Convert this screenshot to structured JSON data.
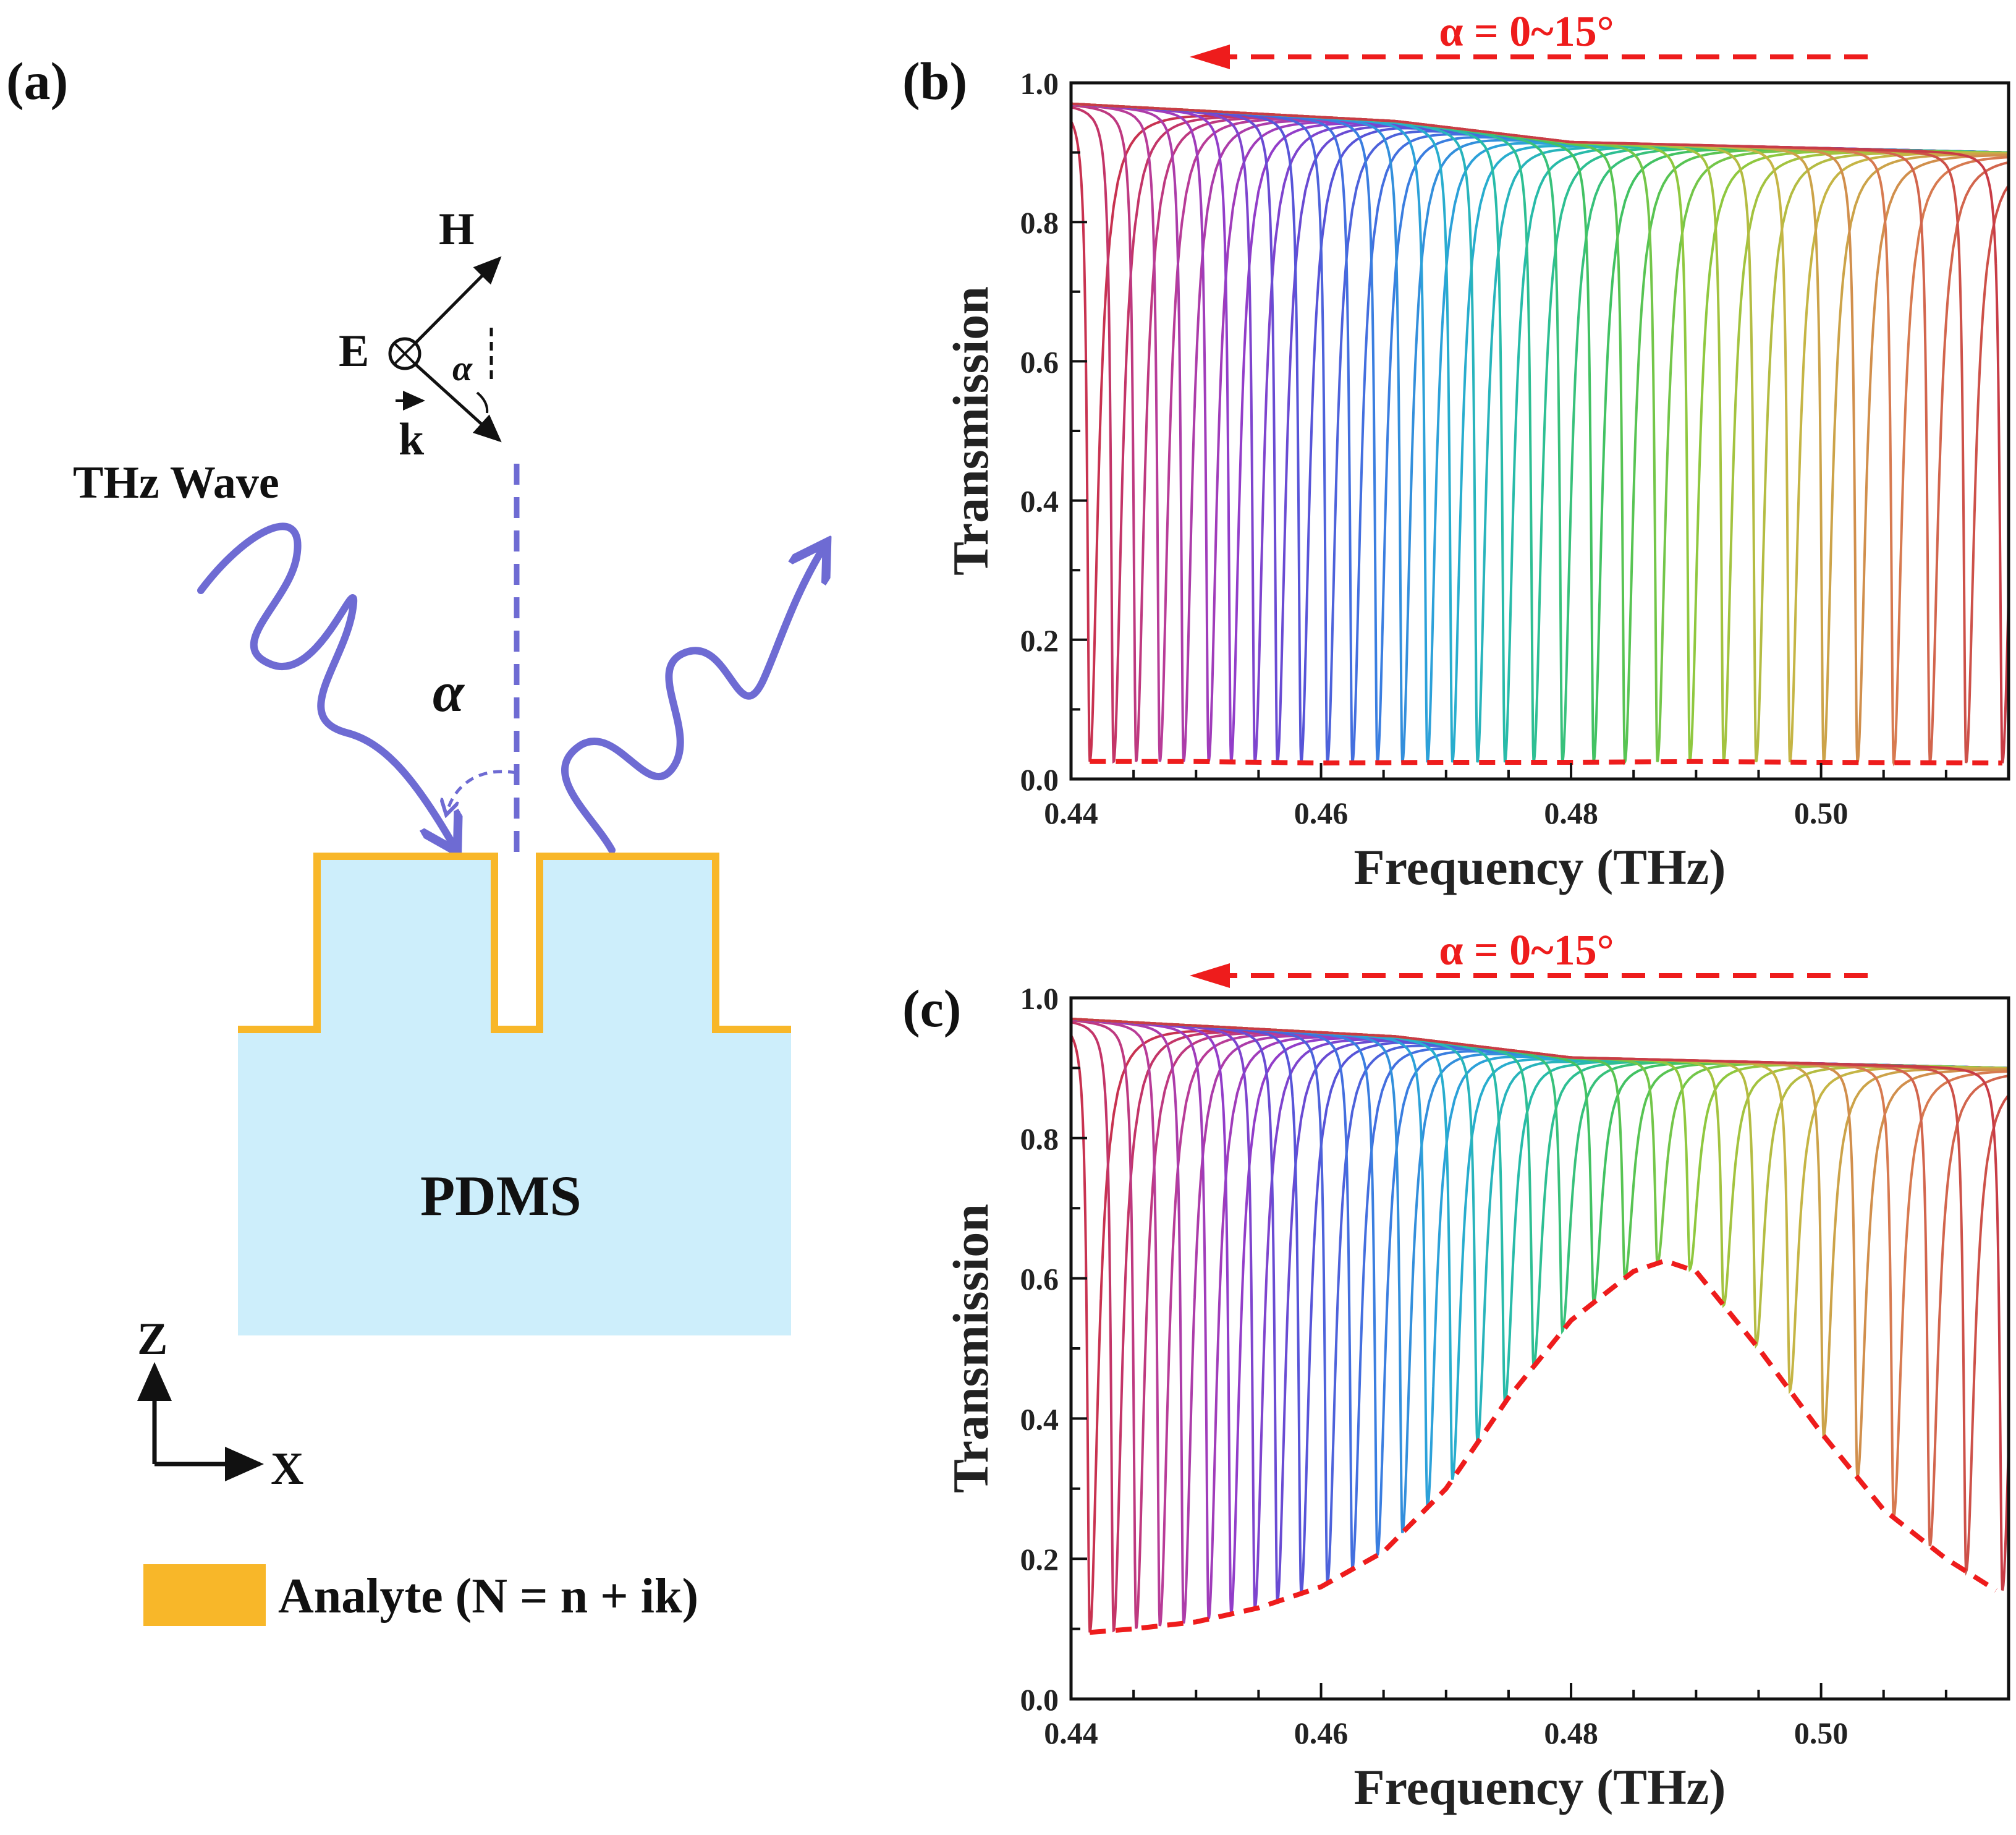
{
  "panel_a": {
    "label": "(a)",
    "thz_wave_label": "THz Wave",
    "h_label": "H",
    "e_label": "E",
    "k_label": "k",
    "alpha_symbol": "α",
    "substrate_label": "PDMS",
    "axis_z_label": "Z",
    "axis_x_label": "X",
    "legend_label": "Analyte  (N = n + ik)",
    "colors": {
      "analyte": "#f8b729",
      "substrate": "#cdeefb",
      "wave": "#6e6bd3"
    }
  },
  "chart_data": [
    {
      "panel_label": "(b)",
      "type": "line",
      "title": "",
      "xlabel": "Frequency (THz)",
      "ylabel": "Transmission",
      "xlim": [
        0.44,
        0.515
      ],
      "ylim": [
        0.0,
        1.0
      ],
      "x_ticks": [
        "0.44",
        "0.46",
        "0.48",
        "0.50"
      ],
      "y_ticks": [
        "0.0",
        "0.2",
        "0.4",
        "0.6",
        "0.8",
        "1.0"
      ],
      "annotation": "α = 0~15°",
      "annotation_arrow": "right-to-left",
      "grid": false,
      "baseline": {
        "x": [
          0.44,
          0.466,
          0.48,
          0.515
        ],
        "y": [
          0.97,
          0.945,
          0.915,
          0.9
        ]
      },
      "resonance_dips_thz": [
        0.4415,
        0.4434,
        0.4452,
        0.4471,
        0.449,
        0.451,
        0.4528,
        0.4547,
        0.4565,
        0.4584,
        0.4605,
        0.4625,
        0.4645,
        0.4665,
        0.4685,
        0.4705,
        0.4725,
        0.4747,
        0.477,
        0.4793,
        0.4818,
        0.4843,
        0.4869,
        0.4895,
        0.4922,
        0.4948,
        0.4975,
        0.5002,
        0.5029,
        0.5058,
        0.5087,
        0.5116,
        0.5145
      ],
      "dip_envelope": {
        "x": [
          0.4415,
          0.45,
          0.46,
          0.47,
          0.48,
          0.49,
          0.5,
          0.5145
        ],
        "y": [
          0.025,
          0.025,
          0.023,
          0.024,
          0.024,
          0.025,
          0.024,
          0.023
        ]
      }
    },
    {
      "panel_label": "(c)",
      "type": "line",
      "title": "",
      "xlabel": "Frequency (THz)",
      "ylabel": "Transmission",
      "xlim": [
        0.44,
        0.515
      ],
      "ylim": [
        0.0,
        1.0
      ],
      "x_ticks": [
        "0.44",
        "0.46",
        "0.48",
        "0.50"
      ],
      "y_ticks": [
        "0.0",
        "0.2",
        "0.4",
        "0.6",
        "0.8",
        "1.0"
      ],
      "annotation": "α = 0~15°",
      "annotation_arrow": "right-to-left",
      "grid": false,
      "baseline": {
        "x": [
          0.44,
          0.466,
          0.48,
          0.515
        ],
        "y": [
          0.97,
          0.945,
          0.915,
          0.9
        ]
      },
      "resonance_dips_thz": [
        0.4415,
        0.4434,
        0.4452,
        0.4471,
        0.449,
        0.451,
        0.4528,
        0.4547,
        0.4565,
        0.4584,
        0.4605,
        0.4625,
        0.4645,
        0.4665,
        0.4685,
        0.4705,
        0.4725,
        0.4747,
        0.477,
        0.4793,
        0.4818,
        0.4843,
        0.4869,
        0.4895,
        0.4922,
        0.4948,
        0.4975,
        0.5002,
        0.5029,
        0.5058,
        0.5087,
        0.5116,
        0.5145
      ],
      "dip_envelope": {
        "x": [
          0.4415,
          0.445,
          0.45,
          0.455,
          0.46,
          0.465,
          0.47,
          0.475,
          0.48,
          0.485,
          0.4875,
          0.49,
          0.495,
          0.5,
          0.505,
          0.51,
          0.514
        ],
        "y": [
          0.095,
          0.1,
          0.11,
          0.13,
          0.16,
          0.21,
          0.3,
          0.43,
          0.54,
          0.61,
          0.625,
          0.61,
          0.5,
          0.38,
          0.27,
          0.2,
          0.155
        ]
      }
    }
  ]
}
